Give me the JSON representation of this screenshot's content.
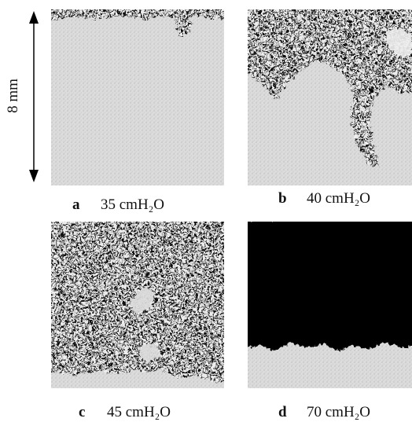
{
  "scale_label": "8 mm",
  "panels": [
    {
      "letter": "a",
      "caption": "35 cmH₂O"
    },
    {
      "letter": "b",
      "caption": "40 cmH₂O"
    },
    {
      "letter": "c",
      "caption": "45 cmH₂O"
    },
    {
      "letter": "d",
      "caption": "70 cmH₂O"
    }
  ]
}
